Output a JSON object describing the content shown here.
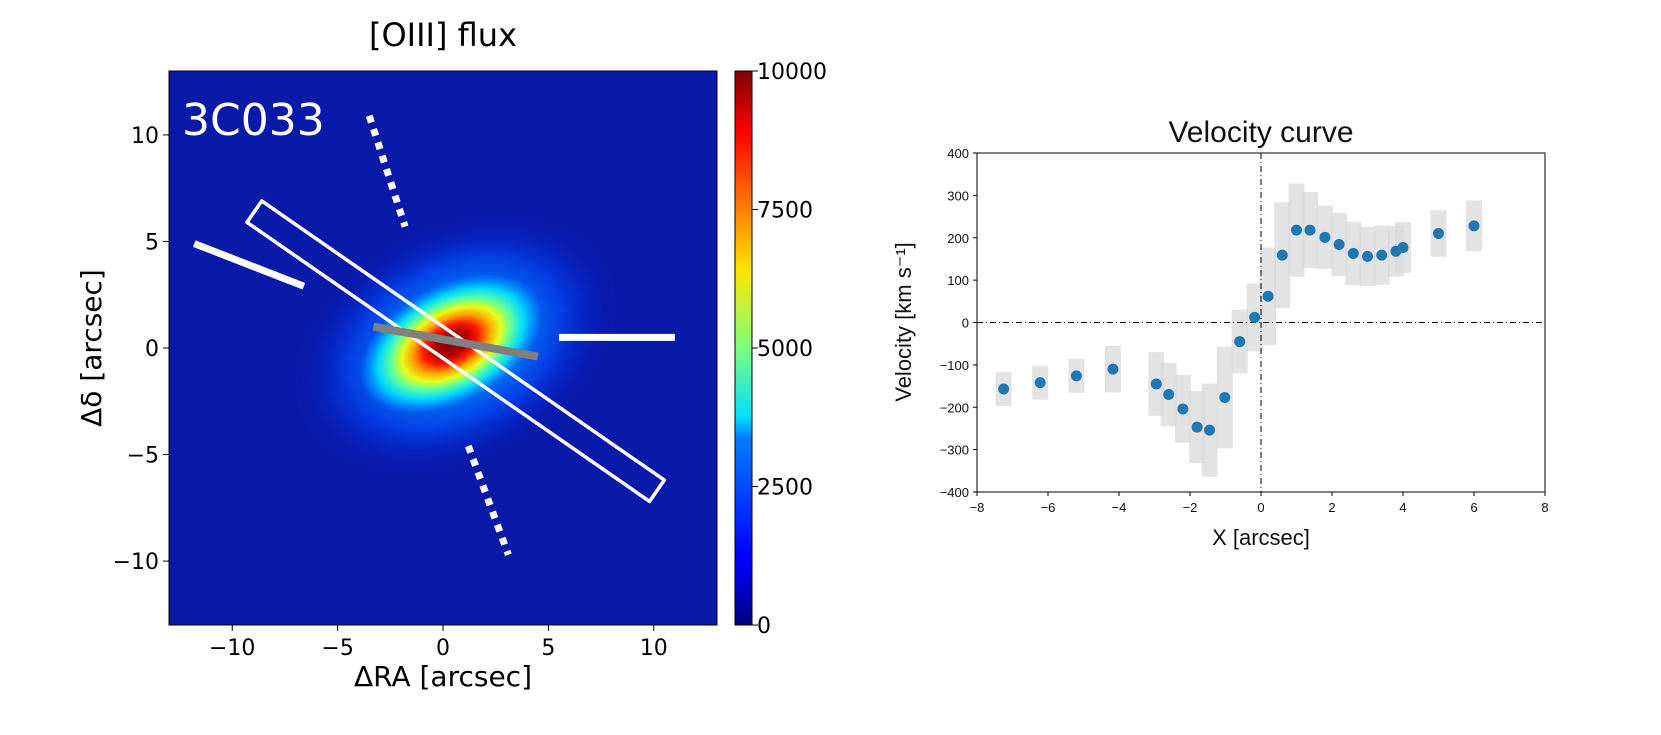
{
  "chart_data": [
    {
      "type": "heatmap",
      "title": "[OIII] flux",
      "annotation": "3C033",
      "xlabel": "ΔRA [arcsec]",
      "ylabel": "Δδ [arcsec]",
      "xlim": [
        -13,
        13
      ],
      "ylim": [
        -13,
        13
      ],
      "xticks": [
        -10,
        -5,
        0,
        5,
        10
      ],
      "xtick_labels": [
        "−10",
        "−5",
        "0",
        "5",
        "10"
      ],
      "yticks": [
        -10,
        -5,
        0,
        5,
        10
      ],
      "ytick_labels": [
        "−10",
        "−5",
        "0",
        "5",
        "10"
      ],
      "colorbar": {
        "colormap": "jet",
        "range": [
          0,
          10000
        ],
        "ticks": [
          0,
          2500,
          5000,
          7500,
          10000
        ],
        "tick_labels": [
          "0",
          "2500",
          "5000",
          "7500",
          "10000"
        ]
      },
      "emission": {
        "peak_center": [
          0.6,
          0.2
        ],
        "peak_value": 10000,
        "halo_radius_major": 6.5,
        "halo_radius_minor": 4.5,
        "position_angle_deg": -28
      },
      "overlays": {
        "slit_box": {
          "corners": [
            [
              -8.6,
              6.9
            ],
            [
              10.5,
              -6.2
            ],
            [
              9.8,
              -7.2
            ],
            [
              -9.3,
              5.9
            ]
          ],
          "color": "#ffffff"
        },
        "gray_line": {
          "from": [
            -3.3,
            1.0
          ],
          "to": [
            4.5,
            -0.4
          ],
          "color": "#808080"
        },
        "white_bars": [
          {
            "from": [
              -11.8,
              4.9
            ],
            "to": [
              -6.6,
              2.9
            ]
          },
          {
            "from": [
              5.5,
              0.5
            ],
            "to": [
              11.0,
              0.5
            ]
          }
        ],
        "dotted_lines": [
          {
            "from": [
              -3.5,
              10.9
            ],
            "to": [
              -1.8,
              5.7
            ]
          },
          {
            "from": [
              1.2,
              -4.6
            ],
            "to": [
              3.1,
              -9.7
            ]
          }
        ]
      }
    },
    {
      "type": "scatter",
      "title": "Velocity curve",
      "xlabel": "X [arcsec]",
      "ylabel": "Velocity [km s⁻¹]",
      "xlim": [
        -8,
        8
      ],
      "ylim": [
        -400,
        400
      ],
      "xticks": [
        -8,
        -6,
        -4,
        -2,
        0,
        2,
        4,
        6,
        8
      ],
      "xtick_labels": [
        "−8",
        "−6",
        "−4",
        "−2",
        "0",
        "2",
        "4",
        "6",
        "8"
      ],
      "yticks": [
        -400,
        -300,
        -200,
        -100,
        0,
        100,
        200,
        300,
        400
      ],
      "ytick_labels": [
        "−400",
        "−300",
        "−200",
        "−100",
        "0",
        "100",
        "200",
        "300",
        "400"
      ],
      "colors": {
        "points": "#1f77b4",
        "error_band": "#d9d9d9"
      },
      "points": [
        {
          "x": -7.25,
          "y": -157,
          "err": 40
        },
        {
          "x": -6.22,
          "y": -142,
          "err": 40
        },
        {
          "x": -5.2,
          "y": -126,
          "err": 40
        },
        {
          "x": -4.17,
          "y": -110,
          "err": 55
        },
        {
          "x": -2.95,
          "y": -145,
          "err": 75
        },
        {
          "x": -2.6,
          "y": -170,
          "err": 75
        },
        {
          "x": -2.2,
          "y": -204,
          "err": 80
        },
        {
          "x": -1.8,
          "y": -247,
          "err": 85
        },
        {
          "x": -1.45,
          "y": -254,
          "err": 110
        },
        {
          "x": -1.02,
          "y": -177,
          "err": 120
        },
        {
          "x": -0.6,
          "y": -45,
          "err": 75
        },
        {
          "x": -0.18,
          "y": 12,
          "err": 80
        },
        {
          "x": 0.2,
          "y": 62,
          "err": 115
        },
        {
          "x": 0.6,
          "y": 159,
          "err": 125
        },
        {
          "x": 1.0,
          "y": 218,
          "err": 110
        },
        {
          "x": 1.38,
          "y": 218,
          "err": 90
        },
        {
          "x": 1.8,
          "y": 201,
          "err": 75
        },
        {
          "x": 2.2,
          "y": 184,
          "err": 75
        },
        {
          "x": 2.6,
          "y": 163,
          "err": 75
        },
        {
          "x": 3.0,
          "y": 156,
          "err": 70
        },
        {
          "x": 3.4,
          "y": 159,
          "err": 70
        },
        {
          "x": 3.8,
          "y": 168,
          "err": 60
        },
        {
          "x": 4.0,
          "y": 177,
          "err": 60
        },
        {
          "x": 5.0,
          "y": 210,
          "err": 55
        },
        {
          "x": 6.0,
          "y": 228,
          "err": 60
        }
      ]
    }
  ]
}
